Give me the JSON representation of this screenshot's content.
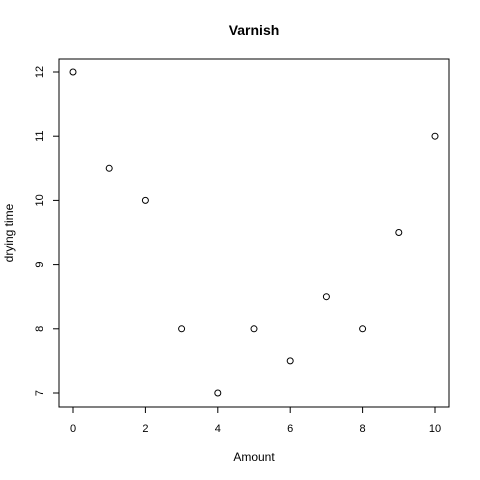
{
  "chart_data": {
    "type": "scatter",
    "title": "Varnish",
    "xlabel": "Amount",
    "ylabel": "drying time",
    "xlim": [
      0,
      10
    ],
    "ylim": [
      7,
      12
    ],
    "x_ticks": [
      "0",
      "2",
      "4",
      "6",
      "8",
      "10"
    ],
    "y_ticks": [
      "7",
      "8",
      "9",
      "10",
      "11",
      "12"
    ],
    "grid": false,
    "legend": "none",
    "marker": "open-circle",
    "series": [
      {
        "x": [
          0,
          1,
          2,
          3,
          4,
          5,
          6,
          7,
          8,
          9,
          10
        ],
        "y": [
          12,
          10.5,
          10,
          8,
          7,
          8,
          7.5,
          8.5,
          8,
          9.5,
          11
        ]
      }
    ]
  }
}
